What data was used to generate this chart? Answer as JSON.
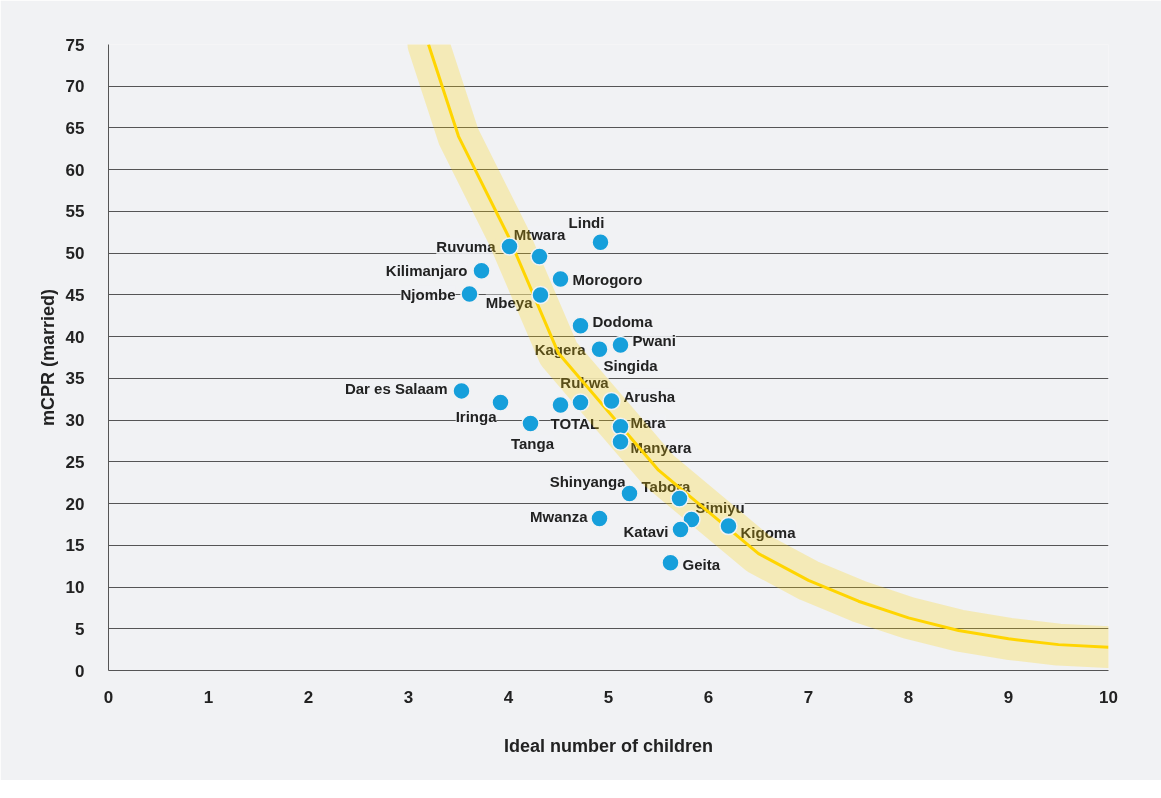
{
  "chart_data": {
    "type": "scatter",
    "xlabel": "Ideal number of children",
    "ylabel": "mCPR (married)",
    "xlim": [
      0,
      10
    ],
    "ylim": [
      0,
      75
    ],
    "xticks": [
      0,
      1,
      2,
      3,
      4,
      5,
      6,
      7,
      8,
      9,
      10
    ],
    "yticks": [
      0,
      5,
      10,
      15,
      20,
      25,
      30,
      35,
      40,
      45,
      50,
      55,
      60,
      65,
      70,
      75
    ],
    "grid": "y",
    "series": [
      {
        "marker": "circle",
        "color": "#169fdb",
        "x": [
          4.92,
          4.01,
          4.31,
          3.73,
          4.52,
          3.61,
          4.32,
          4.72,
          4.91,
          5.12,
          null,
          3.53,
          3.92,
          4.72,
          4.52,
          5.03,
          4.22,
          5.12,
          5.12,
          5.21,
          5.71,
          5.83,
          4.91,
          5.72,
          6.2,
          5.62
        ],
        "values": [
          51.3,
          50.8,
          49.6,
          47.9,
          46.9,
          45.1,
          45.0,
          41.3,
          38.5,
          39.0,
          null,
          33.5,
          32.1,
          32.1,
          31.8,
          32.3,
          29.6,
          29.2,
          27.4,
          21.2,
          20.6,
          18.1,
          18.2,
          16.9,
          17.3,
          12.9
        ]
      },
      {
        "type": "line",
        "color": "#ffd500",
        "x": [
          3.2,
          3.5,
          4.0,
          4.5,
          5.0,
          5.5,
          6.0,
          6.5,
          7.0,
          7.5,
          8.0,
          8.5,
          9.0,
          9.5,
          10.0
        ],
        "values": [
          75,
          64,
          52,
          38,
          31,
          24,
          19,
          14,
          10.8,
          8.3,
          6.3,
          4.8,
          3.8,
          3.1,
          2.8
        ]
      }
    ],
    "annotations": [
      {
        "text": "Lindi",
        "x": 4.92,
        "y": 51.3
      },
      {
        "text": "Ruvuma",
        "x": 4.01,
        "y": 50.8
      },
      {
        "text": "Mtwara",
        "x": 4.31,
        "y": 49.6
      },
      {
        "text": "Kilimanjaro",
        "x": 3.73,
        "y": 47.9
      },
      {
        "text": "Morogoro",
        "x": 4.52,
        "y": 46.9
      },
      {
        "text": "Njombe",
        "x": 3.61,
        "y": 45.1
      },
      {
        "text": "Mbeya",
        "x": 4.32,
        "y": 45.0
      },
      {
        "text": "Dodoma",
        "x": 4.72,
        "y": 41.3
      },
      {
        "text": "Kagera",
        "x": 4.91,
        "y": 38.5
      },
      {
        "text": "Pwani",
        "x": 5.12,
        "y": 39.0
      },
      {
        "text": "Singida",
        "x": 4.91,
        "y": 38.5
      },
      {
        "text": "Dar es Salaam",
        "x": 3.53,
        "y": 33.5
      },
      {
        "text": "Iringa",
        "x": 3.92,
        "y": 32.1
      },
      {
        "text": "Rukwa",
        "x": 4.72,
        "y": 32.1
      },
      {
        "text": "TOTAL",
        "x": 4.52,
        "y": 31.8
      },
      {
        "text": "Arusha",
        "x": 5.03,
        "y": 32.3
      },
      {
        "text": "Tanga",
        "x": 4.22,
        "y": 29.6
      },
      {
        "text": "Mara",
        "x": 5.12,
        "y": 29.2
      },
      {
        "text": "Manyara",
        "x": 5.12,
        "y": 27.4
      },
      {
        "text": "Shinyanga",
        "x": 5.21,
        "y": 21.2
      },
      {
        "text": "Tabora",
        "x": 5.71,
        "y": 20.6
      },
      {
        "text": "Simiyu",
        "x": 5.83,
        "y": 18.1
      },
      {
        "text": "Mwanza",
        "x": 4.91,
        "y": 18.2
      },
      {
        "text": "Katavi",
        "x": 5.72,
        "y": 16.9
      },
      {
        "text": "Kigoma",
        "x": 6.2,
        "y": 17.3
      },
      {
        "text": "Geita",
        "x": 5.62,
        "y": 12.9
      }
    ]
  }
}
